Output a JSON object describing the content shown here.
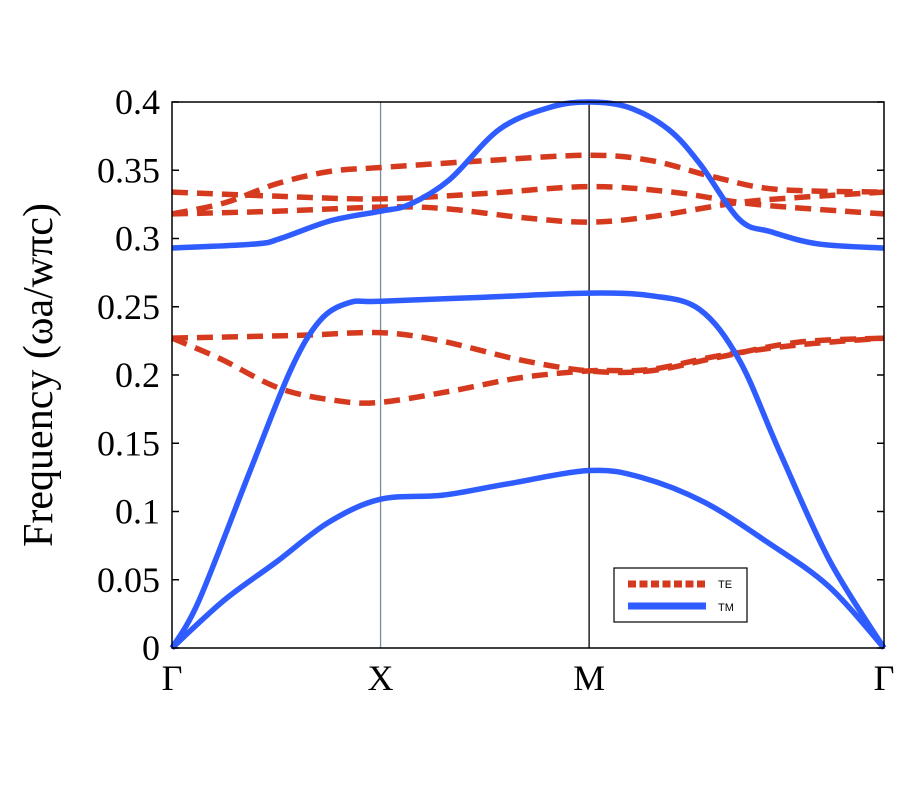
{
  "chart_data": {
    "type": "line",
    "title": "",
    "xlabel": "",
    "ylabel": "Frequency (ωa/wπc)",
    "ylim": [
      0,
      0.4
    ],
    "xlim": [
      0,
      3.414
    ],
    "yticks": [
      "0",
      "0.05",
      "0.1",
      "0.15",
      "0.2",
      "0.25",
      "0.3",
      "0.35",
      "0.4"
    ],
    "ytick_values": [
      0,
      0.05,
      0.1,
      0.15,
      0.2,
      0.25,
      0.3,
      0.35,
      0.4
    ],
    "xticks": [
      "Γ",
      "X",
      "M",
      "Γ"
    ],
    "xtick_values": [
      0,
      1,
      2,
      3.414
    ],
    "grid": false,
    "legend_position": "bottom-right",
    "colors": {
      "TE": "#d63a1e",
      "TM": "#2f5cff"
    },
    "legend": [
      {
        "label": "TE",
        "style": "dashed",
        "color": "#d63a1e"
      },
      {
        "label": "TM",
        "style": "solid",
        "color": "#2f5cff"
      }
    ],
    "series": [
      {
        "name": "TM",
        "band": 1,
        "points": [
          [
            0,
            0
          ],
          [
            0.25,
            0.035
          ],
          [
            0.5,
            0.063
          ],
          [
            0.75,
            0.092
          ],
          [
            1,
            0.109
          ],
          [
            1.3,
            0.112
          ],
          [
            1.6,
            0.12
          ],
          [
            2,
            0.13
          ],
          [
            2.25,
            0.125
          ],
          [
            2.55,
            0.107
          ],
          [
            2.85,
            0.078
          ],
          [
            3.15,
            0.045
          ],
          [
            3.414,
            0
          ]
        ]
      },
      {
        "name": "TM",
        "band": 2,
        "points": [
          [
            0,
            0
          ],
          [
            0.13,
            0.035
          ],
          [
            0.375,
            0.13
          ],
          [
            0.57,
            0.204
          ],
          [
            0.71,
            0.24
          ],
          [
            0.85,
            0.253
          ],
          [
            1,
            0.254
          ],
          [
            1.5,
            0.257
          ],
          [
            2,
            0.26
          ],
          [
            2.3,
            0.258
          ],
          [
            2.53,
            0.248
          ],
          [
            2.72,
            0.211
          ],
          [
            2.91,
            0.145
          ],
          [
            3.15,
            0.065
          ],
          [
            3.414,
            0
          ]
        ]
      },
      {
        "name": "TM",
        "band": 3,
        "points": [
          [
            0,
            0.293
          ],
          [
            0.4,
            0.296
          ],
          [
            0.52,
            0.3
          ],
          [
            0.76,
            0.313
          ],
          [
            1,
            0.32
          ],
          [
            1.14,
            0.325
          ],
          [
            1.33,
            0.343
          ],
          [
            1.57,
            0.38
          ],
          [
            1.81,
            0.396
          ],
          [
            2,
            0.4
          ],
          [
            2.19,
            0.396
          ],
          [
            2.38,
            0.38
          ],
          [
            2.53,
            0.355
          ],
          [
            2.72,
            0.314
          ],
          [
            2.87,
            0.305
          ],
          [
            3.1,
            0.296
          ],
          [
            3.414,
            0.293
          ]
        ]
      },
      {
        "name": "TE",
        "band": 1,
        "points": [
          [
            0,
            0.227
          ],
          [
            0.23,
            0.212
          ],
          [
            0.52,
            0.19
          ],
          [
            0.8,
            0.181
          ],
          [
            1,
            0.18
          ],
          [
            1.33,
            0.188
          ],
          [
            1.67,
            0.198
          ],
          [
            2,
            0.203
          ],
          [
            2.29,
            0.204
          ],
          [
            2.62,
            0.214
          ],
          [
            3.0,
            0.222
          ],
          [
            3.414,
            0.227
          ]
        ]
      },
      {
        "name": "TE",
        "band": 2,
        "points": [
          [
            0,
            0.227
          ],
          [
            0.6,
            0.229
          ],
          [
            1,
            0.231
          ],
          [
            1.29,
            0.225
          ],
          [
            1.67,
            0.211
          ],
          [
            2,
            0.203
          ],
          [
            2.29,
            0.203
          ],
          [
            2.62,
            0.213
          ],
          [
            3.0,
            0.224
          ],
          [
            3.414,
            0.227
          ]
        ]
      },
      {
        "name": "TE",
        "band": 3,
        "points": [
          [
            0,
            0.318
          ],
          [
            0.25,
            0.326
          ],
          [
            0.5,
            0.34
          ],
          [
            0.75,
            0.349
          ],
          [
            1,
            0.352
          ],
          [
            1.5,
            0.357
          ],
          [
            2,
            0.361
          ],
          [
            2.3,
            0.357
          ],
          [
            2.6,
            0.345
          ],
          [
            2.9,
            0.336
          ],
          [
            3.414,
            0.334
          ]
        ]
      },
      {
        "name": "TE",
        "band": 4,
        "points": [
          [
            0,
            0.334
          ],
          [
            0.5,
            0.331
          ],
          [
            1,
            0.329
          ],
          [
            1.5,
            0.333
          ],
          [
            2,
            0.338
          ],
          [
            2.4,
            0.334
          ],
          [
            2.8,
            0.325
          ],
          [
            3.414,
            0.318
          ]
        ]
      },
      {
        "name": "TE",
        "band": 5,
        "points": [
          [
            0,
            0.318
          ],
          [
            0.5,
            0.32
          ],
          [
            1,
            0.323
          ],
          [
            1.3,
            0.322
          ],
          [
            1.7,
            0.315
          ],
          [
            2,
            0.312
          ],
          [
            2.3,
            0.316
          ],
          [
            2.7,
            0.326
          ],
          [
            3.0,
            0.33
          ],
          [
            3.414,
            0.334
          ]
        ]
      }
    ]
  }
}
